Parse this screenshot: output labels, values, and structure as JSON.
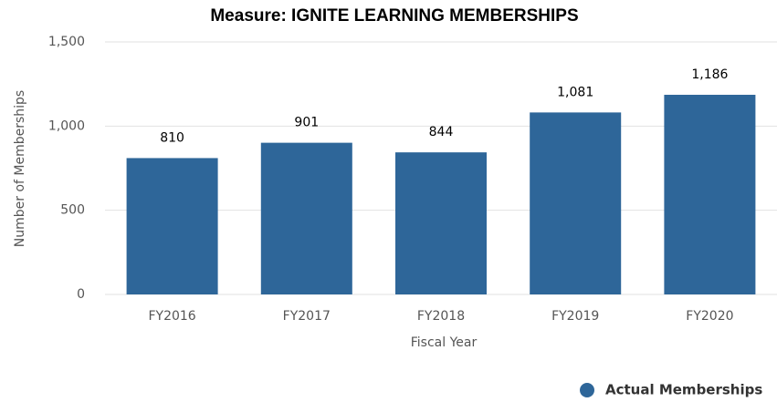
{
  "chart_data": {
    "type": "bar",
    "title": "Measure: IGNITE LEARNING MEMBERSHIPS",
    "x_label": "Fiscal Year",
    "y_label": "Number of Memberships",
    "categories": [
      "FY2016",
      "FY2017",
      "FY2018",
      "FY2019",
      "FY2020"
    ],
    "series": [
      {
        "name": "Actual Memberships",
        "color": "#2e6699",
        "values": [
          810,
          901,
          844,
          1081,
          1186
        ],
        "value_labels": [
          "810",
          "901",
          "844",
          "1,081",
          "1,186"
        ]
      }
    ],
    "ylim": [
      0,
      1500
    ],
    "yticks": [
      0,
      500,
      {
        "value": 1000,
        "label": "1,000"
      },
      {
        "value": 1500,
        "label": "1,500"
      }
    ],
    "grid": true,
    "legend": "bottom-right"
  }
}
